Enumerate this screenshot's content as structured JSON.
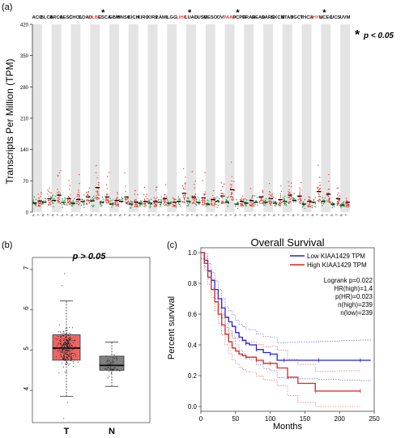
{
  "panel_labels": {
    "a": "(a)",
    "b": "(b)",
    "c": "(c)"
  },
  "sig_note": {
    "star": "*",
    "text": "p < 0.05"
  },
  "chart_data": [
    {
      "type": "scatter",
      "panel": "a",
      "ylabel": "Transcripts Per Million (TPM)",
      "ylim": [
        0,
        420
      ],
      "yticks": [
        0,
        70,
        140,
        210,
        280,
        350,
        420
      ],
      "categories": [
        "ACC",
        "BLCA",
        "BRCA",
        "CESC",
        "CHOL",
        "COAD",
        "DLBC",
        "ESCA",
        "GBM",
        "HNSC",
        "KICH",
        "KIRC",
        "KIRP",
        "LAML",
        "LGG",
        "LIHC",
        "LUAD",
        "LUSC",
        "MESO",
        "OV",
        "PAAD",
        "PCPG",
        "PRAD",
        "READ",
        "SARC",
        "SKCM",
        "STAD",
        "TGCT",
        "THCA",
        "THYM",
        "UCEC",
        "UCS",
        "UVM"
      ],
      "highlighted": [
        "DLBC",
        "LIHC",
        "PAAD",
        "THYM"
      ],
      "starred": [
        "DLBC",
        "LIHC",
        "PAAD",
        "THYM"
      ],
      "tumor_color": "#e8413c",
      "normal_color": "#1a9a3a",
      "tumor_median": [
        25,
        30,
        38,
        30,
        28,
        34,
        55,
        34,
        26,
        34,
        22,
        24,
        24,
        30,
        22,
        42,
        34,
        32,
        28,
        36,
        50,
        24,
        26,
        34,
        30,
        28,
        38,
        36,
        24,
        46,
        40,
        30,
        22
      ],
      "normal_median": [
        20,
        22,
        26,
        22,
        20,
        24,
        25,
        22,
        18,
        24,
        18,
        20,
        20,
        22,
        20,
        24,
        24,
        22,
        18,
        24,
        22,
        18,
        20,
        22,
        22,
        20,
        24,
        26,
        18,
        22,
        24,
        18,
        16
      ]
    },
    {
      "type": "box",
      "panel": "b",
      "annotation": "p > 0.05",
      "categories": [
        "T",
        "N"
      ],
      "yticks": [
        4,
        5,
        6,
        7
      ],
      "ylim": [
        3.2,
        7.3
      ],
      "boxes": [
        {
          "name": "T",
          "q1": 4.75,
          "median": 5.05,
          "q3": 5.38,
          "whisker_low": 3.85,
          "whisker_high": 6.22,
          "color": "#f06464"
        },
        {
          "name": "N",
          "q1": 4.5,
          "median": 4.62,
          "q3": 4.85,
          "whisker_low": 4.1,
          "whisker_high": 5.2,
          "color": "#808080"
        }
      ]
    },
    {
      "type": "line",
      "panel": "c",
      "title": "Overall Survival",
      "xlabel": "Months",
      "ylabel": "Percent survival",
      "xlim": [
        0,
        250
      ],
      "ylim": [
        0,
        1.0
      ],
      "xticks": [
        0,
        50,
        100,
        150,
        200,
        250
      ],
      "yticks": [
        0.0,
        0.2,
        0.4,
        0.6,
        0.8,
        1.0
      ],
      "legend": [
        "Low KIAA1429 TPM",
        "High KIAA1429 TPM"
      ],
      "stats": [
        "Logrank p=0.022",
        "HR(high)=1.4",
        "p(HR)=0.023",
        "n(high)=239",
        "n(low)=239"
      ],
      "series": [
        {
          "name": "Low KIAA1429 TPM",
          "color": "#2222dd",
          "x": [
            0,
            5,
            10,
            15,
            20,
            25,
            30,
            35,
            40,
            45,
            50,
            55,
            60,
            65,
            70,
            80,
            90,
            100,
            110,
            120,
            140,
            170,
            200,
            230,
            245
          ],
          "y": [
            1.0,
            0.95,
            0.88,
            0.82,
            0.76,
            0.7,
            0.64,
            0.58,
            0.55,
            0.52,
            0.48,
            0.45,
            0.43,
            0.41,
            0.4,
            0.37,
            0.35,
            0.34,
            0.3,
            0.3,
            0.3,
            0.3,
            0.3,
            0.3,
            0.3
          ]
        },
        {
          "name": "High KIAA1429 TPM",
          "color": "#dd2222",
          "x": [
            0,
            5,
            10,
            15,
            20,
            25,
            30,
            35,
            40,
            45,
            50,
            55,
            60,
            65,
            70,
            80,
            90,
            100,
            110,
            125,
            140,
            165,
            200,
            230
          ],
          "y": [
            1.0,
            0.93,
            0.84,
            0.76,
            0.68,
            0.6,
            0.53,
            0.47,
            0.42,
            0.38,
            0.36,
            0.34,
            0.33,
            0.32,
            0.32,
            0.3,
            0.28,
            0.28,
            0.25,
            0.19,
            0.15,
            0.1,
            0.1,
            0.1
          ]
        }
      ]
    }
  ]
}
